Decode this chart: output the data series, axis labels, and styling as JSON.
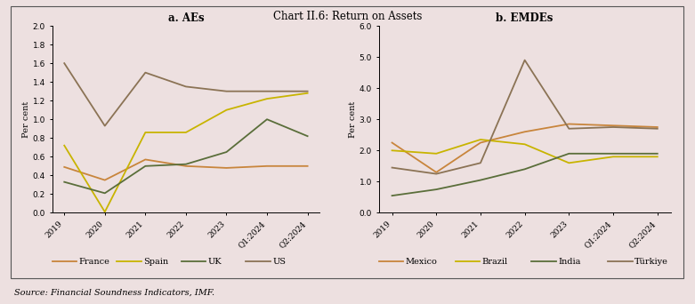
{
  "title": "Chart II.6: Return on Assets",
  "source": "Source: Financial Soundness Indicators, IMF.",
  "background_color": "#ede0e0",
  "panel_background": "#ede0e0",
  "x_labels": [
    "2019",
    "2020",
    "2021",
    "2022",
    "2023",
    "Q1:2024",
    "Q2:2024"
  ],
  "panel_a": {
    "title": "a. AEs",
    "ylabel": "Per cent",
    "ylim": [
      0.0,
      2.0
    ],
    "yticks": [
      0.0,
      0.2,
      0.4,
      0.6,
      0.8,
      1.0,
      1.2,
      1.4,
      1.6,
      1.8,
      2.0
    ],
    "series": {
      "France": {
        "values": [
          0.49,
          0.35,
          0.57,
          0.5,
          0.48,
          0.5,
          0.5
        ],
        "color": "#c8853c"
      },
      "Spain": {
        "values": [
          0.72,
          0.01,
          0.86,
          0.86,
          1.1,
          1.22,
          1.28
        ],
        "color": "#c8b400"
      },
      "UK": {
        "values": [
          0.33,
          0.21,
          0.5,
          0.52,
          0.65,
          1.0,
          0.82
        ],
        "color": "#5a6e3a"
      },
      "US": {
        "values": [
          1.6,
          0.93,
          1.5,
          1.35,
          1.3,
          1.3,
          1.3
        ],
        "color": "#8b7355"
      }
    }
  },
  "panel_b": {
    "title": "b. EMDEs",
    "ylabel": "Per cent",
    "ylim": [
      0.0,
      6.0
    ],
    "yticks": [
      0.0,
      1.0,
      2.0,
      3.0,
      4.0,
      5.0,
      6.0
    ],
    "series": {
      "Mexico": {
        "values": [
          2.25,
          1.3,
          2.25,
          2.6,
          2.85,
          2.8,
          2.75
        ],
        "color": "#c8853c"
      },
      "Brazil": {
        "values": [
          2.0,
          1.9,
          2.35,
          2.2,
          1.6,
          1.8,
          1.8
        ],
        "color": "#c8b400"
      },
      "India": {
        "values": [
          0.55,
          0.75,
          1.05,
          1.4,
          1.9,
          1.9,
          1.9
        ],
        "color": "#5a6e3a"
      },
      "Türkiye": {
        "values": [
          1.45,
          1.25,
          1.6,
          4.9,
          2.7,
          2.75,
          2.7
        ],
        "color": "#8b7355"
      }
    }
  }
}
